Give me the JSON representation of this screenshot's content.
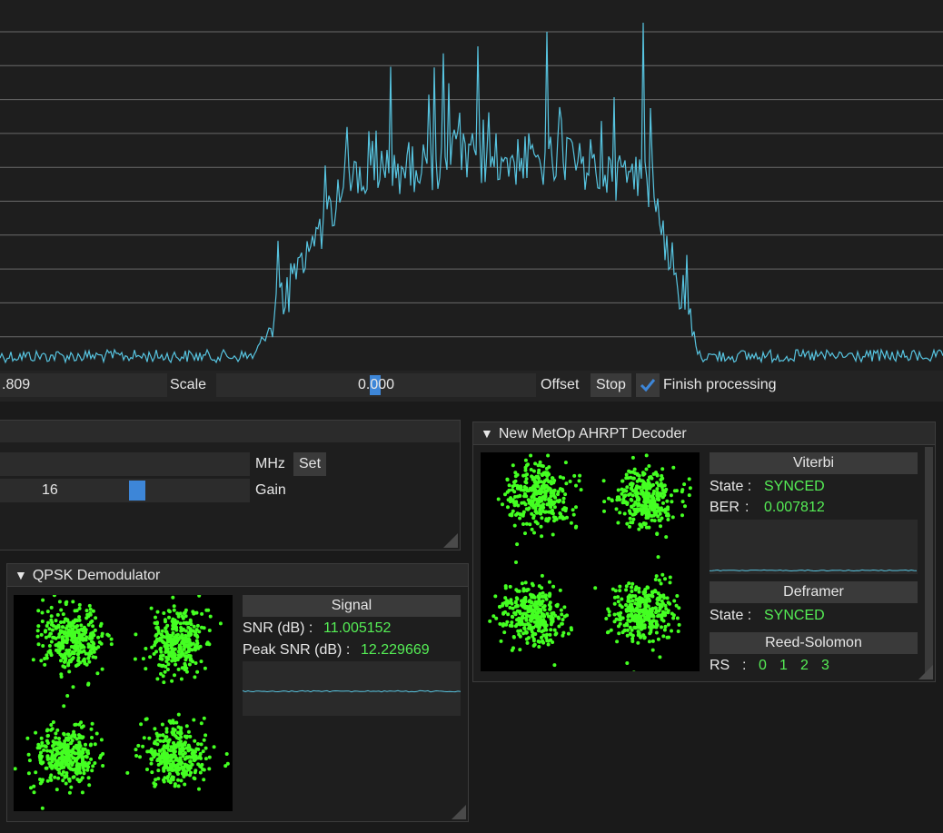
{
  "colors": {
    "spectrum_line": "#57c4e0",
    "constellation_points": "#44ff22",
    "status_green": "#55ee55",
    "accent_blue": "#3d86d8"
  },
  "toolbar": {
    "left_value": ".809",
    "scale_label": "Scale",
    "offset_value": "0.000",
    "offset_label": "Offset",
    "stop_label": "Stop",
    "finish_label": "Finish processing",
    "finish_checked": true
  },
  "source_panel": {
    "mhz_label": "MHz",
    "set_label": "Set",
    "gain_value": "16",
    "gain_label": "Gain"
  },
  "qpsk": {
    "title": "QPSK Demodulator",
    "signal_header": "Signal",
    "snr_label": "SNR (dB) :",
    "snr_value": "11.005152",
    "peak_label": "Peak SNR (dB) :",
    "peak_value": "12.229669"
  },
  "decoder": {
    "title": "New MetOp AHRPT Decoder",
    "viterbi_header": "Viterbi",
    "state_label": "State :",
    "viterbi_state": "SYNCED",
    "ber_label": "BER",
    "ber_sep": ":",
    "ber_value": "0.007812",
    "deframer_header": "Deframer",
    "deframer_state_label": "State :",
    "deframer_state": "SYNCED",
    "rs_header": "Reed-Solomon",
    "rs_label": "RS",
    "rs_sep": ":",
    "rs_values": [
      "0",
      "1",
      "2",
      "3"
    ]
  }
}
